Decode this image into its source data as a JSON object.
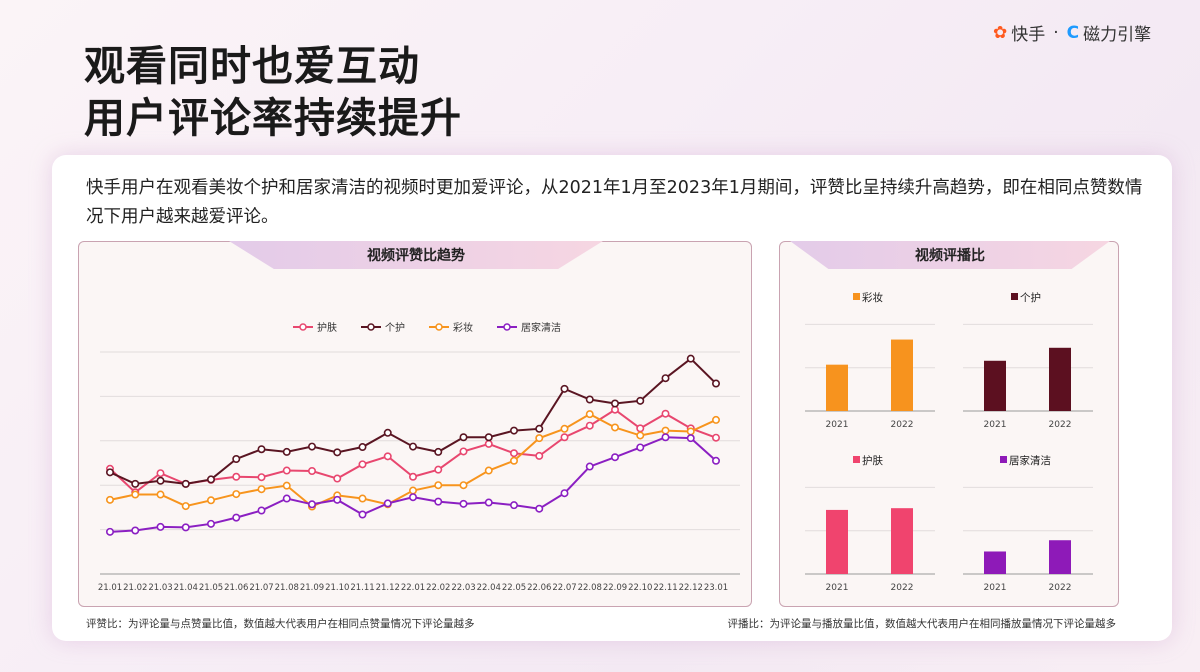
{
  "header": {
    "title_line1": "观看同时也爱互动",
    "title_line2": "用户评论率持续提升",
    "logo": {
      "kuaishou": "快手",
      "sep": "·",
      "cili": "磁力引擎"
    }
  },
  "description": "快手用户在观看美妆个护和居家清洁的视频时更加爱评论，从2021年1月至2023年1月期间，评赞比呈持续升高趋势，即在相同点赞数情况下用户越来越爱评论。",
  "left_panel": {
    "title": "视频评赞比趋势",
    "footnote": "评赞比：为评论量与点赞量比值，数值越大代表用户在相同点赞量情况下评论量越多"
  },
  "right_panel": {
    "title": "视频评播比",
    "footnote": "评播比：为评论量与播放量比值，数值越大代表用户在相同播放量情况下评论量越多"
  },
  "chart_data": [
    {
      "type": "line",
      "title": "视频评赞比趋势",
      "legend_position": "top",
      "grid": true,
      "ylim": [
        0,
        5
      ],
      "categories": [
        "21.01",
        "21.02",
        "21.03",
        "21.04",
        "21.05",
        "21.06",
        "21.07",
        "21.08",
        "21.09",
        "21.10",
        "21.11",
        "21.12",
        "22.01",
        "22.02",
        "22.03",
        "22.04",
        "22.05",
        "22.06",
        "22.07",
        "22.08",
        "22.09",
        "22.10",
        "22.11",
        "22.12",
        "23.01"
      ],
      "series": [
        {
          "name": "护肤",
          "color": "#e8476f",
          "values": [
            2.37,
            1.84,
            2.27,
            2.03,
            2.12,
            2.19,
            2.18,
            2.33,
            2.32,
            2.15,
            2.47,
            2.65,
            2.19,
            2.35,
            2.76,
            2.93,
            2.72,
            2.66,
            3.08,
            3.34,
            3.7,
            3.28,
            3.61,
            3.28,
            3.07
          ]
        },
        {
          "name": "个护",
          "color": "#5a1522",
          "values": [
            2.29,
            2.03,
            2.1,
            2.03,
            2.13,
            2.59,
            2.81,
            2.75,
            2.87,
            2.74,
            2.86,
            3.18,
            2.87,
            2.75,
            3.08,
            3.08,
            3.23,
            3.27,
            4.17,
            3.93,
            3.84,
            3.9,
            4.41,
            4.85,
            4.29
          ]
        },
        {
          "name": "彩妆",
          "color": "#f7941d",
          "values": [
            1.67,
            1.79,
            1.79,
            1.53,
            1.66,
            1.8,
            1.91,
            1.99,
            1.52,
            1.77,
            1.7,
            1.57,
            1.88,
            2.0,
            2.0,
            2.33,
            2.55,
            3.06,
            3.27,
            3.6,
            3.3,
            3.12,
            3.23,
            3.21,
            3.47
          ]
        },
        {
          "name": "居家清洁",
          "color": "#8b1fc2",
          "values": [
            0.95,
            0.98,
            1.06,
            1.05,
            1.13,
            1.27,
            1.43,
            1.7,
            1.57,
            1.67,
            1.34,
            1.59,
            1.73,
            1.63,
            1.58,
            1.61,
            1.55,
            1.47,
            1.82,
            2.42,
            2.63,
            2.85,
            3.08,
            3.06,
            2.55
          ]
        }
      ]
    },
    {
      "type": "bar",
      "title": "视频评播比",
      "ylim": [
        0,
        2
      ],
      "grid": true,
      "categories": [
        "2021",
        "2022"
      ],
      "series": [
        {
          "name": "彩妆",
          "color": "#f7931e",
          "values": [
            1.07,
            1.65
          ]
        },
        {
          "name": "个护",
          "color": "#5c1020",
          "values": [
            1.16,
            1.46
          ]
        },
        {
          "name": "护肤",
          "color": "#f0446e",
          "values": [
            1.48,
            1.52
          ]
        },
        {
          "name": "居家清洁",
          "color": "#8e1ab8",
          "values": [
            0.52,
            0.78
          ]
        }
      ]
    }
  ]
}
